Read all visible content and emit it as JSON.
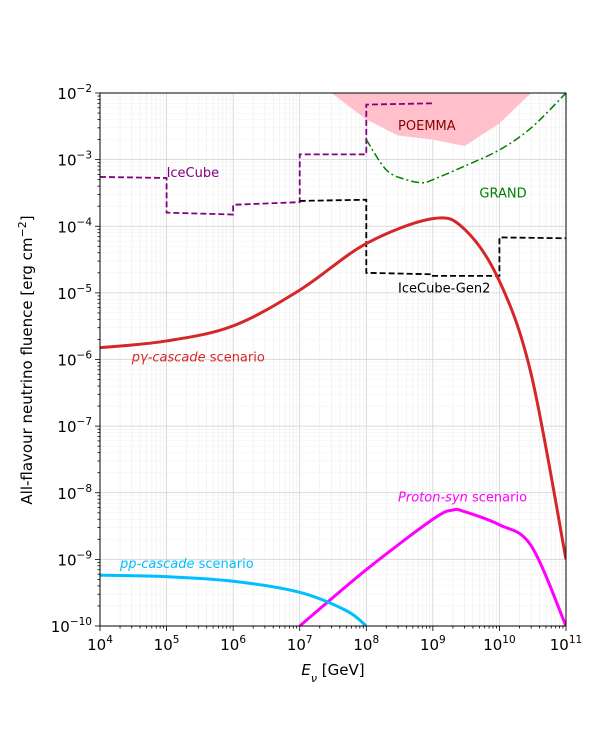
{
  "chart_data": {
    "type": "line",
    "x_scale": "log",
    "y_scale": "log",
    "xlim": [
      10000.0,
      100000000000.0
    ],
    "ylim": [
      1e-10,
      0.01
    ],
    "grid": true,
    "xlabel": {
      "symbol": "E",
      "sub": "ν",
      "unit": " [GeV]"
    },
    "ylabel": {
      "pre": "All-flavour neutrino fluence [erg cm",
      "sup": "−2",
      "post": "]"
    },
    "x_ticks": [
      {
        "base": "10",
        "exp": "4"
      },
      {
        "base": "10",
        "exp": "5"
      },
      {
        "base": "10",
        "exp": "6"
      },
      {
        "base": "10",
        "exp": "7"
      },
      {
        "base": "10",
        "exp": "8"
      },
      {
        "base": "10",
        "exp": "9"
      },
      {
        "base": "10",
        "exp": "10"
      },
      {
        "base": "10",
        "exp": "11"
      }
    ],
    "y_ticks": [
      {
        "base": "10",
        "exp": "−10"
      },
      {
        "base": "10",
        "exp": "−9"
      },
      {
        "base": "10",
        "exp": "−8"
      },
      {
        "base": "10",
        "exp": "−7"
      },
      {
        "base": "10",
        "exp": "−6"
      },
      {
        "base": "10",
        "exp": "−5"
      },
      {
        "base": "10",
        "exp": "−4"
      },
      {
        "base": "10",
        "exp": "−3"
      },
      {
        "base": "10",
        "exp": "−2"
      }
    ],
    "series": [
      {
        "name": "pγ-cascade scenario",
        "color": "#d62728",
        "style": "solid",
        "x": [
          10000.0,
          100000.0,
          1000000.0,
          10000000.0,
          100000000.0,
          1000000000.0,
          3000000000.0,
          10000000000.0,
          30000000000.0,
          100000000000.0
        ],
        "y": [
          1.5e-06,
          1.9e-06,
          3.2e-06,
          1.1e-05,
          5.5e-05,
          0.00013,
          9e-05,
          1.5e-05,
          6e-07,
          1e-09
        ]
      },
      {
        "name": "pp-cascade scenario",
        "color": "#00bfff",
        "style": "solid",
        "x": [
          10000.0,
          100000.0,
          1000000.0,
          10000000.0,
          50000000.0,
          100000000.0
        ],
        "y": [
          5.8e-10,
          5.5e-10,
          4.7e-10,
          3.2e-10,
          1.7e-10,
          1e-10
        ]
      },
      {
        "name": "Proton-syn scenario",
        "color": "#ff00ff",
        "style": "solid",
        "x": [
          10000000.0,
          100000000.0,
          1000000000.0,
          2000000000.0,
          3000000000.0,
          10000000000.0,
          30000000000.0,
          100000000000.0
        ],
        "y": [
          1e-10,
          7e-10,
          4e-09,
          5.5e-09,
          5.2e-09,
          3.3e-09,
          1.6e-09,
          1e-10
        ]
      },
      {
        "name": "IceCube",
        "color": "#800080",
        "style": "dashed",
        "x": [
          10000.0,
          100000.0,
          100000.0,
          1000000.0,
          1000000.0,
          10000000.0,
          10000000.0,
          100000000.0,
          100000000.0,
          1000000000.0
        ],
        "y": [
          0.00055,
          0.00053,
          0.00016,
          0.00015,
          0.00021,
          0.00023,
          0.0012,
          0.0012,
          0.0067,
          0.007
        ]
      },
      {
        "name": "IceCube-Gen2",
        "color": "#000000",
        "style": "dashed",
        "x": [
          10000000.0,
          100000000.0,
          100000000.0,
          1000000000.0,
          1000000000.0,
          10000000000.0,
          10000000000.0,
          100000000000.0
        ],
        "y": [
          0.00024,
          0.00025,
          2e-05,
          1.9e-05,
          1.8e-05,
          1.8e-05,
          6.8e-05,
          6.6e-05
        ]
      },
      {
        "name": "GRAND",
        "color": "#008000",
        "style": "dashdot",
        "x": [
          100000000.0,
          200000000.0,
          400000000.0,
          700000000.0,
          1000000000.0,
          3000000000.0,
          10000000000.0,
          30000000000.0,
          100000000000.0
        ],
        "y": [
          0.002,
          0.0007,
          0.0005,
          0.00045,
          0.0005,
          0.0008,
          0.0014,
          0.003,
          0.01
        ]
      },
      {
        "name": "POEMMA",
        "color": "#ffc0cb",
        "style": "fill",
        "x": [
          30000000.0,
          100000000.0,
          300000000.0,
          1000000000.0,
          3000000000.0,
          10000000000.0,
          30000000000.0
        ],
        "y_low": [
          0.01,
          0.004,
          0.0023,
          0.002,
          0.0016,
          0.0035,
          0.01
        ],
        "y_high": [
          0.01,
          0.01,
          0.01,
          0.01,
          0.01,
          0.01,
          0.01
        ]
      }
    ],
    "annotations": [
      {
        "text": "POEMMA",
        "color": "#8b0000",
        "x": 300000000.0,
        "y": 0.0033
      },
      {
        "text": "IceCube",
        "color": "#800080",
        "x": 100000.0,
        "y": 0.00065
      },
      {
        "text": "GRAND",
        "color": "#008000",
        "x": 5000000000.0,
        "y": 0.00032
      },
      {
        "text": "IceCube-Gen2",
        "color": "#000000",
        "x": 300000000.0,
        "y": 1.2e-05
      },
      {
        "text": "pγ-cascade",
        "rest": " scenario",
        "color": "#d62728",
        "x": 30000.0,
        "y": 1.1e-06
      },
      {
        "text": "Proton-syn",
        "rest": " scenario",
        "color": "#ff00ff",
        "x": 300000000.0,
        "y": 8.8e-09
      },
      {
        "text": "pp-cascade",
        "rest": " scenario",
        "color": "#00bfff",
        "x": 20000.0,
        "y": 8.8e-10
      }
    ]
  }
}
